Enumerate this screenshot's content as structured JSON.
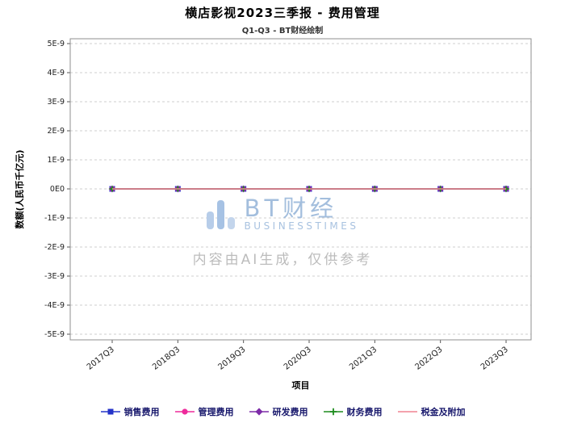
{
  "watermark": {
    "brand": "BT财经",
    "brand_sub": "BUSINESSTIMES",
    "disclaimer": "内容由AI生成，仅供参考"
  },
  "chart_data": {
    "type": "line",
    "title": "横店影视2023三季报 - 费用管理",
    "subtitle": "Q1-Q3 - BT财经绘制",
    "xlabel": "项目",
    "ylabel": "数额(人民币千亿元)",
    "categories": [
      "2017Q3",
      "2018Q3",
      "2019Q3",
      "2020Q3",
      "2021Q3",
      "2022Q3",
      "2023Q3"
    ],
    "series": [
      {
        "name": "销售费用",
        "marker": "square",
        "color": "#2433c8",
        "values": [
          0,
          0,
          0,
          0,
          0,
          0,
          0
        ]
      },
      {
        "name": "管理费用",
        "marker": "circle",
        "color": "#ee2a9b",
        "values": [
          0,
          0,
          0,
          0,
          0,
          0,
          0
        ]
      },
      {
        "name": "研发费用",
        "marker": "diamond",
        "color": "#7d2ca8",
        "values": [
          0,
          0,
          0,
          0,
          0,
          0,
          0
        ]
      },
      {
        "name": "财务费用",
        "marker": "plus",
        "color": "#1e8c1e",
        "values": [
          0,
          0,
          0,
          0,
          0,
          0,
          0
        ]
      },
      {
        "name": "税金及附加",
        "marker": "none",
        "color": "#f08492",
        "values": [
          0,
          0,
          0,
          0,
          0,
          0,
          0
        ]
      }
    ],
    "ylim": [
      -5e-09,
      5e-09
    ],
    "y_ticks": [
      "5E-9",
      "4E-9",
      "3E-9",
      "2E-9",
      "1E-9",
      "0E0",
      "-1E-9",
      "-2E-9",
      "-3E-9",
      "-4E-9",
      "-5E-9"
    ],
    "grid": true,
    "grid_style": "dashed",
    "legend_position": "bottom"
  }
}
